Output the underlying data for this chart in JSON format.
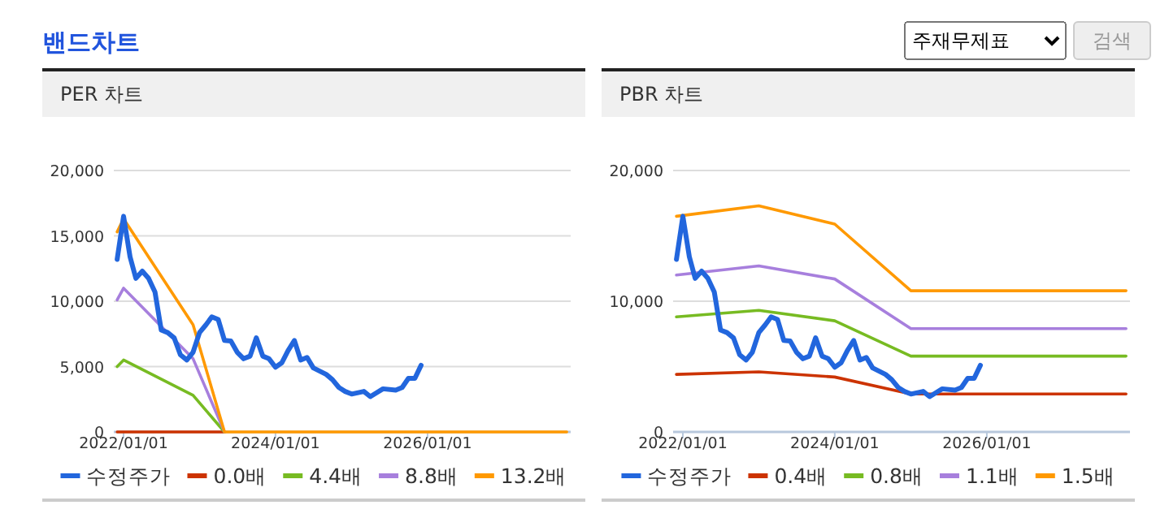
{
  "chart_data": [
    {
      "type": "line",
      "title": "PER 차트",
      "annotations": [
        "밴드차트",
        "주재무제표",
        "검색"
      ],
      "xlim": [
        "2021-11-15",
        "2027-11-20"
      ],
      "ylim": [
        0,
        20000
      ],
      "xticks": [
        {
          "value": "2022-01-01",
          "label": "2022/01/01"
        },
        {
          "value": "2024-01-01",
          "label": "2024/01/01"
        },
        {
          "value": "2026-01-01",
          "label": "2026/01/01"
        }
      ],
      "yticks": [
        0,
        {
          "value": 5000,
          "label": "5,000"
        },
        {
          "value": 10000,
          "label": "10,000"
        },
        {
          "value": 15000,
          "label": "15,000"
        },
        {
          "value": 20000,
          "label": "20,000"
        }
      ],
      "grid": "y",
      "legend": "bottom",
      "marker": "none",
      "line_style": "solid",
      "series": [
        {
          "name": "수정주가",
          "color": "#2266dd",
          "x": [
            "2021-12",
            "2022-01",
            "2022-02",
            "2022-03",
            "2022-04",
            "2022-05",
            "2022-06",
            "2022-07",
            "2022-08",
            "2022-09",
            "2022-10",
            "2022-11",
            "2022-12",
            "2023-01",
            "2023-02",
            "2023-03",
            "2023-04",
            "2023-05",
            "2023-06",
            "2023-07",
            "2023-08",
            "2023-09",
            "2023-10",
            "2023-11",
            "2023-12",
            "2024-01",
            "2024-02",
            "2024-03",
            "2024-04",
            "2024-05",
            "2024-06",
            "2024-07",
            "2024-09",
            "2024-10",
            "2024-11",
            "2024-12",
            "2025-01",
            "2025-03",
            "2025-04",
            "2025-05",
            "2025-06",
            "2025-08",
            "2025-09",
            "2025-10",
            "2025-11",
            "2025-12"
          ],
          "values": [
            13200,
            16500,
            13400,
            11750,
            12300,
            11750,
            10700,
            7800,
            7600,
            7200,
            5900,
            5500,
            6100,
            7600,
            8200,
            8800,
            8600,
            7000,
            6950,
            6100,
            5600,
            5800,
            7200,
            5800,
            5600,
            4950,
            5300,
            6200,
            7000,
            5500,
            5700,
            4900,
            4400,
            4000,
            3400,
            3100,
            2900,
            3100,
            2700,
            3000,
            3300,
            3200,
            3400,
            4100,
            4100,
            5100
          ]
        },
        {
          "name": "0.0배",
          "color": "#cc3300",
          "x": [
            "2021-12",
            "2022-01",
            "2022-12",
            "2023-05"
          ],
          "values": [
            0,
            0,
            0,
            0
          ]
        },
        {
          "name": "4.4배",
          "color": "#77bb22",
          "x": [
            "2021-12",
            "2022-01",
            "2022-12",
            "2023-05"
          ],
          "values": [
            5000,
            5500,
            2800,
            0
          ]
        },
        {
          "name": "8.8배",
          "color": "#a77fdd",
          "x": [
            "2021-12",
            "2022-01",
            "2022-12",
            "2023-05"
          ],
          "values": [
            10100,
            11000,
            5600,
            0
          ]
        },
        {
          "name": "13.2배",
          "color": "#ff9900",
          "x": [
            "2021-12",
            "2022-01",
            "2022-12",
            "2023-05",
            "2027-11"
          ],
          "values": [
            15300,
            16300,
            8200,
            0,
            0
          ]
        }
      ]
    },
    {
      "type": "line",
      "title": "PBR 차트",
      "xlim": [
        "2021-11-15",
        "2027-11-20"
      ],
      "ylim": [
        0,
        20000
      ],
      "xticks": [
        {
          "value": "2022-01-01",
          "label": "2022/01/01"
        },
        {
          "value": "2024-01-01",
          "label": "2024/01/01"
        },
        {
          "value": "2026-01-01",
          "label": "2026/01/01"
        }
      ],
      "yticks": [
        0,
        {
          "value": 10000,
          "label": "10,000"
        },
        {
          "value": 20000,
          "label": "20,000"
        }
      ],
      "grid": "y",
      "legend": "bottom",
      "marker": "none",
      "line_style": "solid",
      "series": [
        {
          "name": "수정주가",
          "color": "#2266dd",
          "x": [
            "2021-12",
            "2022-01",
            "2022-02",
            "2022-03",
            "2022-04",
            "2022-05",
            "2022-06",
            "2022-07",
            "2022-08",
            "2022-09",
            "2022-10",
            "2022-11",
            "2022-12",
            "2023-01",
            "2023-02",
            "2023-03",
            "2023-04",
            "2023-05",
            "2023-06",
            "2023-07",
            "2023-08",
            "2023-09",
            "2023-10",
            "2023-11",
            "2023-12",
            "2024-01",
            "2024-02",
            "2024-03",
            "2024-04",
            "2024-05",
            "2024-06",
            "2024-07",
            "2024-09",
            "2024-10",
            "2024-11",
            "2024-12",
            "2025-01",
            "2025-03",
            "2025-04",
            "2025-05",
            "2025-06",
            "2025-08",
            "2025-09",
            "2025-10",
            "2025-11",
            "2025-12"
          ],
          "values": [
            13200,
            16500,
            13400,
            11750,
            12300,
            11750,
            10700,
            7800,
            7600,
            7200,
            5900,
            5500,
            6100,
            7600,
            8200,
            8800,
            8600,
            7000,
            6950,
            6100,
            5600,
            5800,
            7200,
            5800,
            5600,
            4950,
            5300,
            6200,
            7000,
            5500,
            5700,
            4900,
            4400,
            4000,
            3400,
            3100,
            2900,
            3100,
            2700,
            3000,
            3300,
            3200,
            3400,
            4100,
            4100,
            5100
          ]
        },
        {
          "name": "0.4배",
          "color": "#cc3300",
          "x": [
            "2021-12",
            "2023-01",
            "2024-01",
            "2025-01",
            "2027-11"
          ],
          "values": [
            4400,
            4600,
            4200,
            2900,
            2900
          ]
        },
        {
          "name": "0.8배",
          "color": "#77bb22",
          "x": [
            "2021-12",
            "2023-01",
            "2024-01",
            "2025-01",
            "2027-11"
          ],
          "values": [
            8800,
            9300,
            8500,
            5800,
            5800
          ]
        },
        {
          "name": "1.1배",
          "color": "#a77fdd",
          "x": [
            "2021-12",
            "2023-01",
            "2024-01",
            "2025-01",
            "2027-11"
          ],
          "values": [
            12000,
            12700,
            11700,
            7900,
            7900
          ]
        },
        {
          "name": "1.5배",
          "color": "#ff9900",
          "x": [
            "2021-12",
            "2023-01",
            "2024-01",
            "2025-01",
            "2027-11"
          ],
          "values": [
            16500,
            17300,
            15900,
            10800,
            10800
          ]
        }
      ]
    }
  ]
}
